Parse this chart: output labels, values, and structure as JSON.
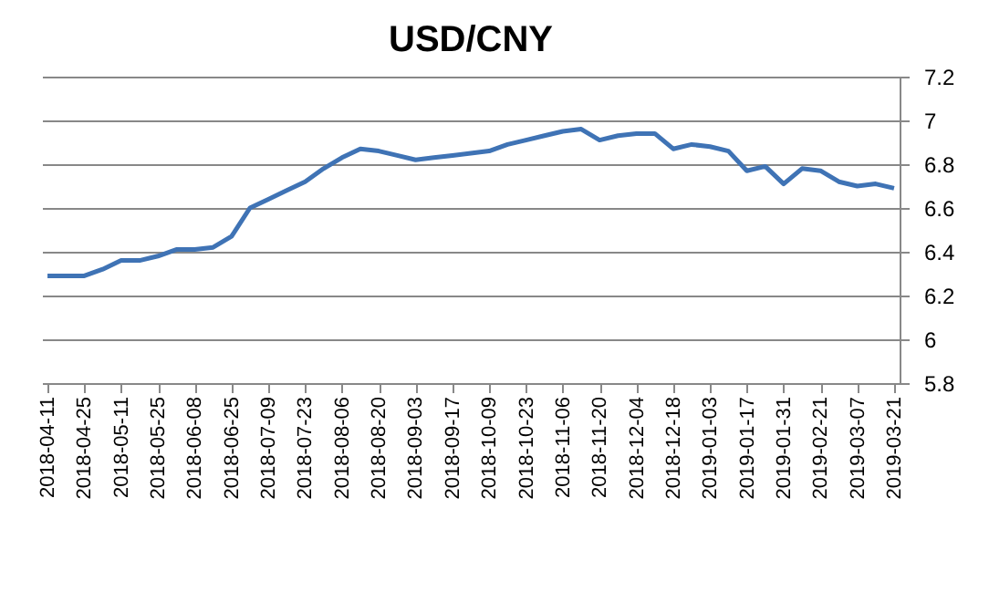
{
  "chart_data": {
    "type": "line",
    "title": "USD/CNY",
    "categories": [
      "2018-04-11",
      null,
      "2018-04-25",
      null,
      "2018-05-11",
      null,
      "2018-05-25",
      null,
      "2018-06-08",
      null,
      "2018-06-25",
      null,
      "2018-07-09",
      null,
      "2018-07-23",
      null,
      "2018-08-06",
      null,
      "2018-08-20",
      null,
      "2018-09-03",
      null,
      "2018-09-17",
      null,
      "2018-10-09",
      null,
      "2018-10-23",
      null,
      "2018-11-06",
      null,
      "2018-11-20",
      null,
      "2018-12-04",
      null,
      "2018-12-18",
      null,
      "2019-01-03",
      null,
      "2019-01-17",
      null,
      "2019-01-31",
      null,
      "2019-02-21",
      null,
      "2019-03-07",
      null,
      "2019-03-21"
    ],
    "series": [
      {
        "color": "#3f73b5",
        "values": [
          6.29,
          6.29,
          6.29,
          6.32,
          6.36,
          6.36,
          6.38,
          6.41,
          6.41,
          6.42,
          6.47,
          6.6,
          6.64,
          6.68,
          6.72,
          6.78,
          6.83,
          6.87,
          6.86,
          6.84,
          6.82,
          6.83,
          6.84,
          6.85,
          6.86,
          6.89,
          6.91,
          6.93,
          6.95,
          6.96,
          6.91,
          6.93,
          6.94,
          6.94,
          6.87,
          6.89,
          6.88,
          6.86,
          6.77,
          6.79,
          6.71,
          6.78,
          6.77,
          6.72,
          6.7,
          6.71,
          6.69
        ]
      }
    ],
    "ylim": [
      5.8,
      7.2
    ],
    "yticks": [
      5.8,
      6,
      6.2,
      6.4,
      6.6,
      6.8,
      7,
      7.2
    ],
    "grid": "y",
    "marker": "none",
    "line_style": "solid"
  }
}
